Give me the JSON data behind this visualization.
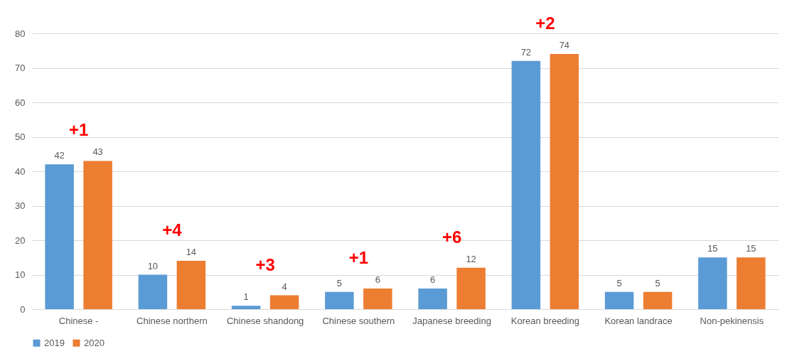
{
  "chart_data": {
    "type": "bar",
    "categories": [
      "Chinese -",
      "Chinese northern",
      "Chinese shandong",
      "Chinese southern",
      "Japanese breeding",
      "Korean breeding",
      "Korean landrace",
      "Non-pekinensis"
    ],
    "series": [
      {
        "name": "2019",
        "color": "#5b9bd5",
        "values": [
          42,
          10,
          1,
          5,
          6,
          72,
          5,
          15
        ]
      },
      {
        "name": "2020",
        "color": "#ed7d31",
        "values": [
          43,
          14,
          4,
          6,
          12,
          74,
          5,
          15
        ]
      }
    ],
    "ylim": [
      0,
      80
    ],
    "yticks": [
      0,
      10,
      20,
      30,
      40,
      50,
      60,
      70,
      80
    ],
    "grid": "y",
    "legend": "bottom",
    "data_labels": true,
    "annotations": [
      "+1",
      "+4",
      "+3",
      "+1",
      "+6",
      "+2"
    ]
  }
}
